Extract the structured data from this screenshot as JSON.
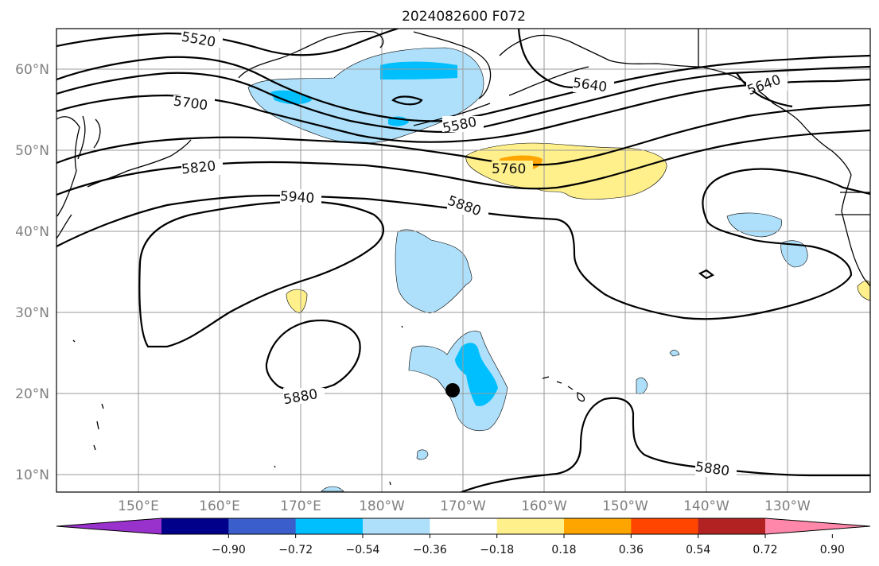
{
  "title": "2024082600 F072",
  "lat_labels": [
    "60°N",
    "50°N",
    "40°N",
    "30°N",
    "20°N",
    "10°N"
  ],
  "lon_labels": [
    "150°E",
    "160°E",
    "170°E",
    "180°W",
    "170°W",
    "160°W",
    "150°W",
    "140°W",
    "130°W"
  ],
  "contour_labels": [
    "5520",
    "5640",
    "5700",
    "5580",
    "5820",
    "5760",
    "5940",
    "5880",
    "5880",
    "5880",
    "5640"
  ],
  "colorbar": {
    "ticks": [
      "−0.90",
      "−0.72",
      "−0.54",
      "−0.36",
      "−0.18",
      "0.18",
      "0.36",
      "0.54",
      "0.72",
      "0.90"
    ],
    "colors": [
      "#9932cc",
      "#00008b",
      "#3a5fcd",
      "#00bfff",
      "#aee0fb",
      "#ffffff",
      "#fff08c",
      "#ffa500",
      "#ff4500",
      "#b22222",
      "#ff88aa"
    ]
  },
  "marker": "typhoon-position-dot"
}
